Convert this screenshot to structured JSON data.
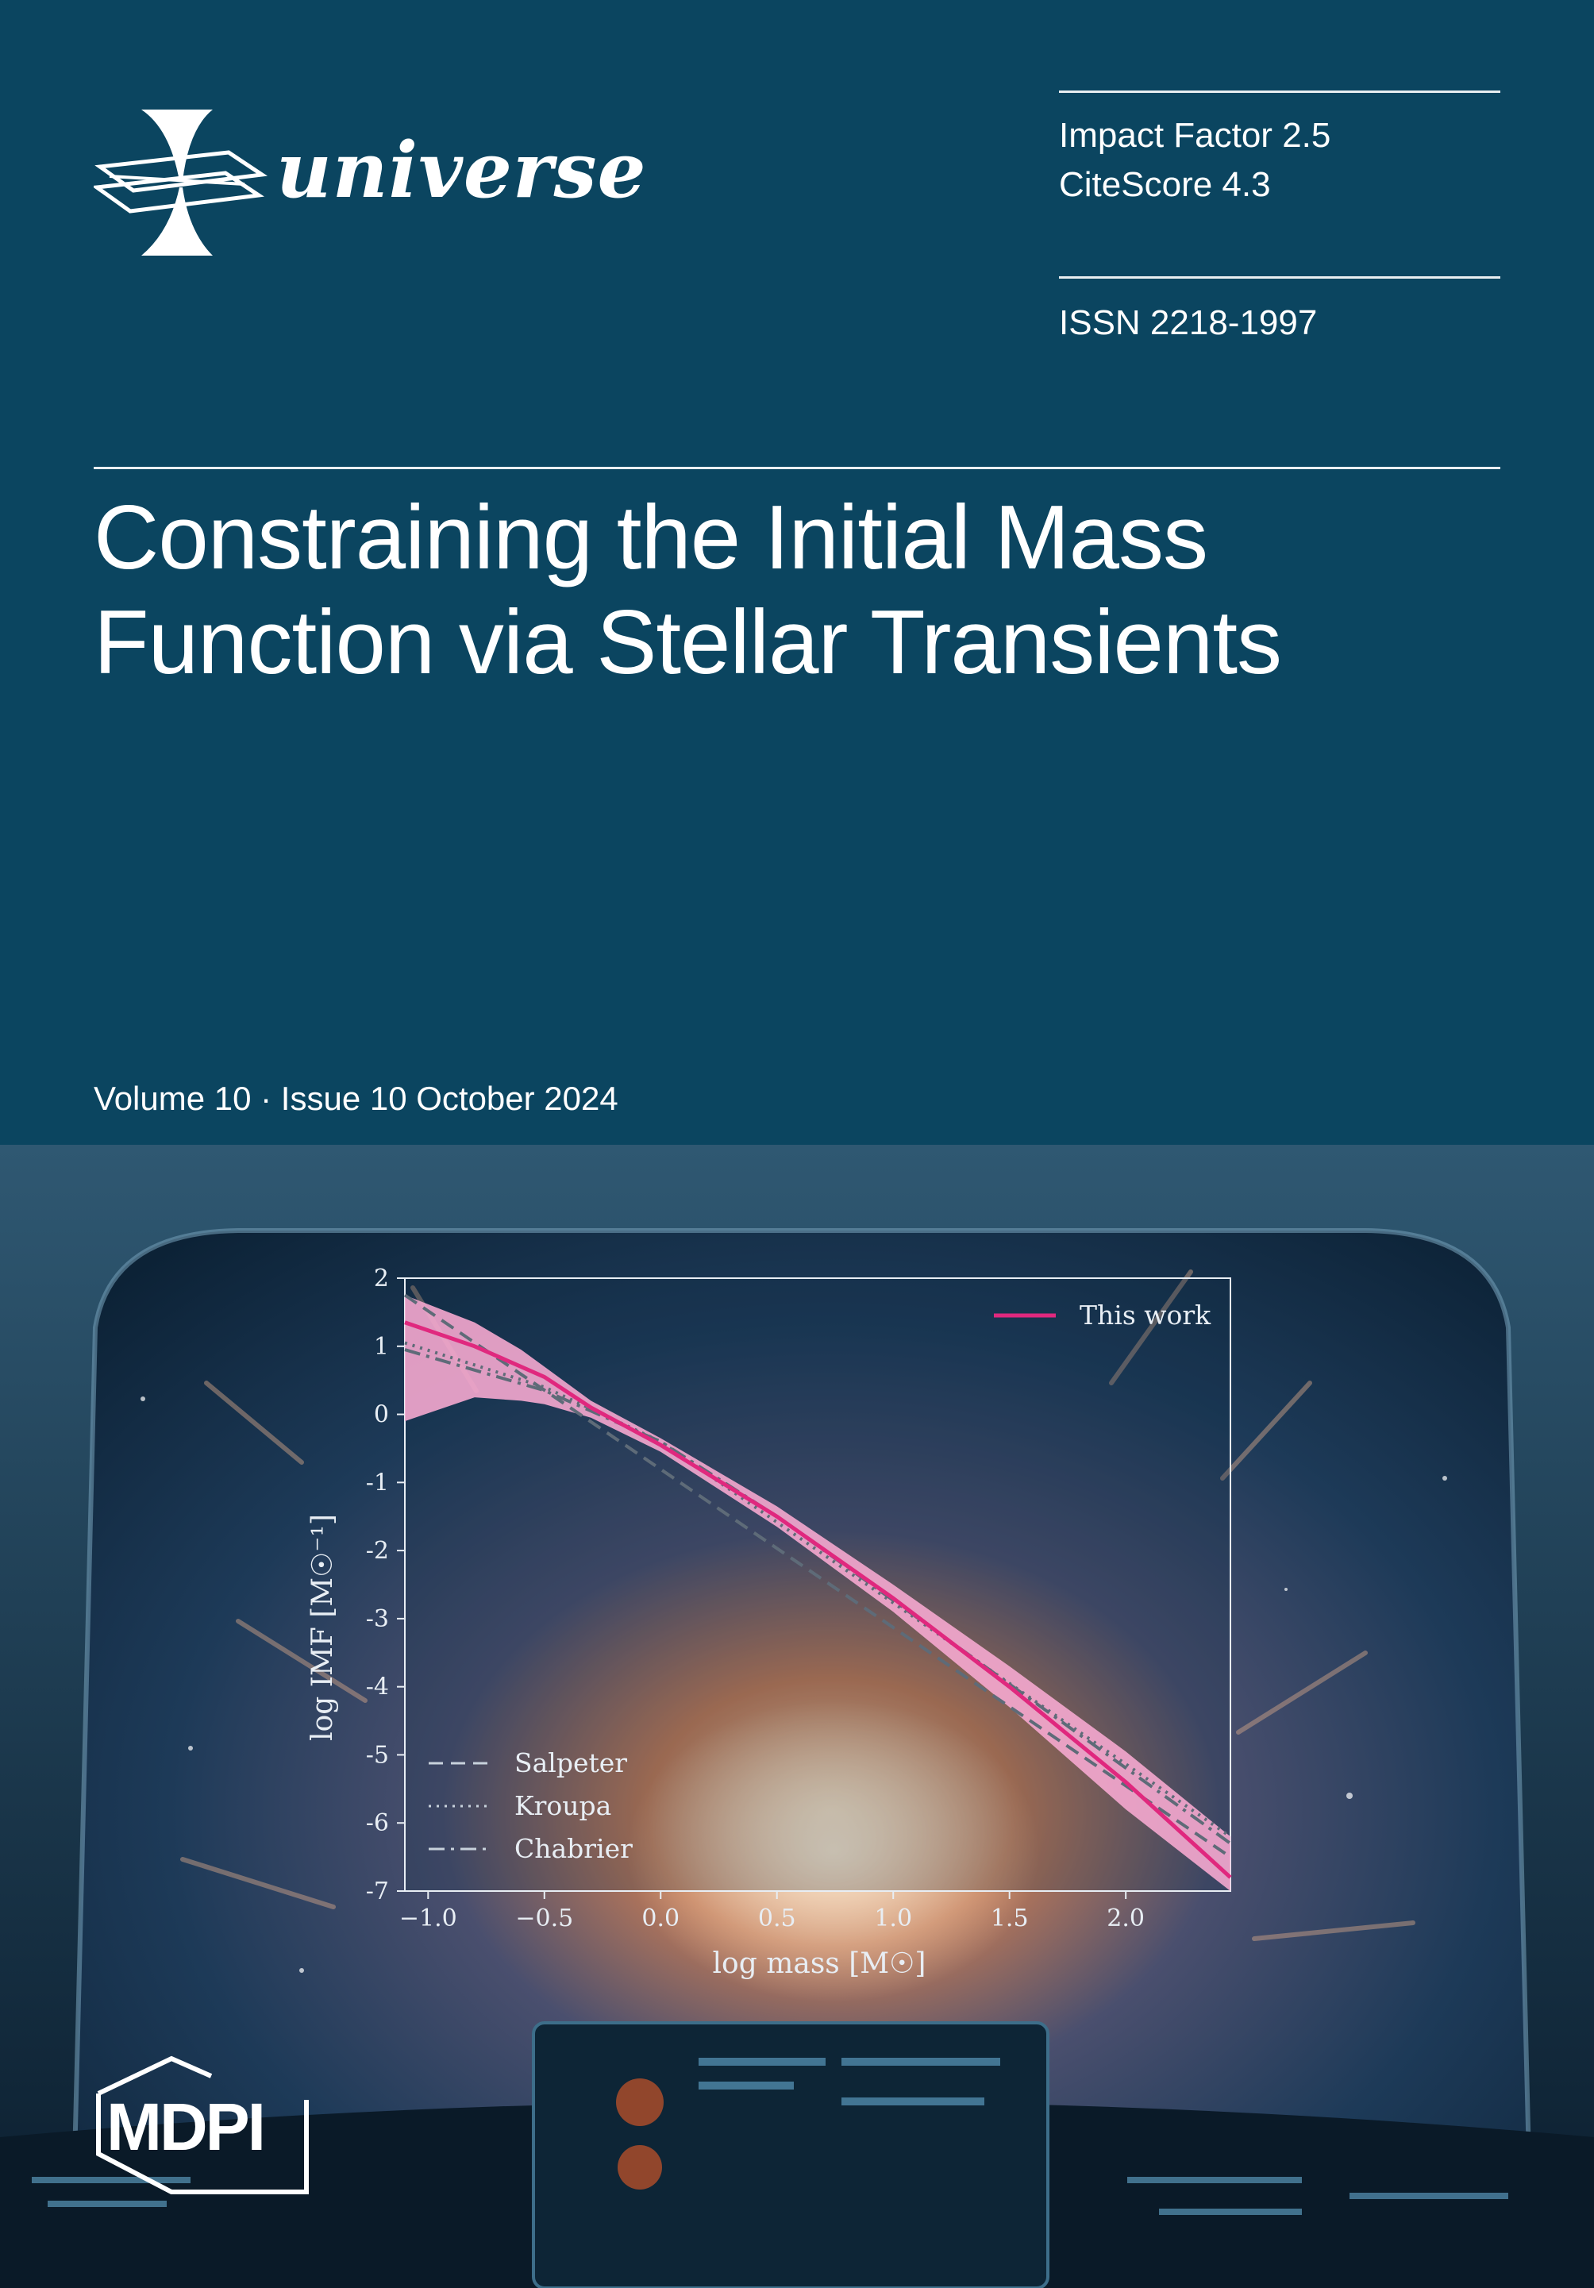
{
  "journal": {
    "name": "universe"
  },
  "metrics": {
    "impact_factor": "Impact Factor 2.5",
    "citescore": "CiteScore 4.3",
    "issn": "ISSN 2218-1997"
  },
  "article_title": "Constraining the Initial Mass Function via Stellar Transients",
  "issue_line": "Volume 10 · Issue 10 October 2024",
  "publisher": {
    "name": "MDPI"
  },
  "colors": {
    "background": "#0b4560",
    "this_work": "#e0287e",
    "band": "#f5a8cf",
    "reference_lines": "#5e6b78"
  },
  "chart_data": {
    "type": "line",
    "xlabel": "log  mass [M☉]",
    "ylabel": "log IMF [M☉⁻¹]",
    "xlim": [
      -1.1,
      2.45
    ],
    "ylim": [
      -7,
      2
    ],
    "xticks": [
      -1.0,
      -0.5,
      0.0,
      0.5,
      1.0,
      1.5,
      2.0
    ],
    "xtick_labels": [
      "−1.0",
      "−0.5",
      "0.0",
      "0.5",
      "1.0",
      "1.5",
      "2.0"
    ],
    "yticks": [
      2,
      1,
      0,
      -1,
      -2,
      -3,
      -4,
      -5,
      -6,
      -7
    ],
    "ytick_labels": [
      "2",
      "1",
      "0",
      "-1",
      "-2",
      "-3",
      "-4",
      "-5",
      "-6",
      "-7"
    ],
    "legend_top_right": "This work",
    "legend_bottom_left": [
      "Salpeter",
      "Kroupa",
      "Chabrier"
    ],
    "series": [
      {
        "name": "This work",
        "style": "solid",
        "x": [
          -1.1,
          -0.8,
          -0.5,
          -0.3,
          0.0,
          0.5,
          1.0,
          1.5,
          2.0,
          2.45
        ],
        "y": [
          1.35,
          1.0,
          0.55,
          0.1,
          -0.45,
          -1.5,
          -2.7,
          -4.0,
          -5.4,
          -6.8
        ]
      },
      {
        "name": "Salpeter",
        "style": "dashed",
        "x": [
          -1.1,
          2.45
        ],
        "y": [
          1.75,
          -6.5
        ]
      },
      {
        "name": "Kroupa",
        "style": "dotted",
        "x": [
          -1.1,
          -0.5,
          0.0,
          2.45
        ],
        "y": [
          1.05,
          0.4,
          -0.4,
          -6.2
        ]
      },
      {
        "name": "Chabrier",
        "style": "dashdot",
        "x": [
          -1.1,
          -0.5,
          0.0,
          0.5,
          2.45
        ],
        "y": [
          0.95,
          0.35,
          -0.4,
          -1.5,
          -6.3
        ]
      }
    ],
    "band": {
      "x": [
        -1.1,
        -0.8,
        -0.6,
        -0.5,
        -0.3,
        0.0,
        0.5,
        1.0,
        1.5,
        2.0,
        2.45
      ],
      "upper": [
        1.75,
        1.35,
        0.95,
        0.7,
        0.2,
        -0.35,
        -1.35,
        -2.5,
        -3.7,
        -4.95,
        -6.2
      ],
      "lower": [
        -0.1,
        0.25,
        0.2,
        0.15,
        -0.05,
        -0.55,
        -1.65,
        -2.9,
        -4.3,
        -5.8,
        -7.0
      ]
    }
  }
}
